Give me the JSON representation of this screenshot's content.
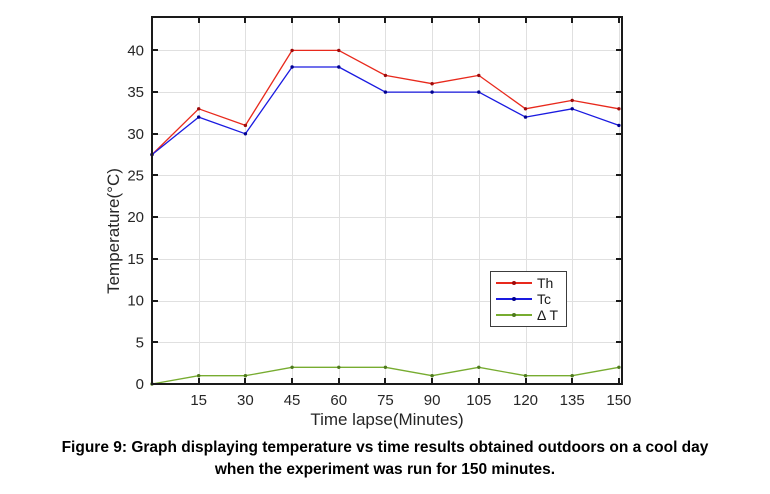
{
  "figure": {
    "caption_line1": "Figure 9: Graph displaying temperature vs time results obtained outdoors on a cool day",
    "caption_line2": "when the experiment was run for 150 minutes."
  },
  "chart_data": {
    "type": "line",
    "title": "",
    "xlabel": "Time lapse(Minutes)",
    "ylabel": "Temperature(°C)",
    "x": [
      0,
      15,
      30,
      45,
      60,
      75,
      90,
      105,
      120,
      135,
      150
    ],
    "series": [
      {
        "name": "Th",
        "color": "#e8291c",
        "marker_color": "#9e0b0b",
        "values": [
          27.5,
          33,
          31,
          40,
          40,
          37,
          36,
          37,
          33,
          34,
          33
        ]
      },
      {
        "name": "Tc",
        "color": "#1a1ae0",
        "marker_color": "#00008f",
        "values": [
          27.5,
          32,
          30,
          38,
          38,
          35,
          35,
          35,
          32,
          33,
          31
        ]
      },
      {
        "name": "Δ T",
        "color": "#77ac30",
        "marker_color": "#4e7a1d",
        "values": [
          0,
          1,
          1,
          2,
          2,
          2,
          1,
          2,
          1,
          1,
          2
        ]
      }
    ],
    "xticks": [
      15,
      30,
      45,
      60,
      75,
      90,
      105,
      120,
      135,
      150
    ],
    "yticks": [
      0,
      5,
      10,
      15,
      20,
      25,
      30,
      35,
      40
    ],
    "xlim": [
      0,
      151
    ],
    "ylim": [
      0,
      44
    ],
    "grid": true,
    "marker": "point",
    "legend_position": "inside-right",
    "colors": {
      "grid": "#e0e0e0",
      "axis": "#1a1a1a",
      "text": "#262626"
    }
  }
}
